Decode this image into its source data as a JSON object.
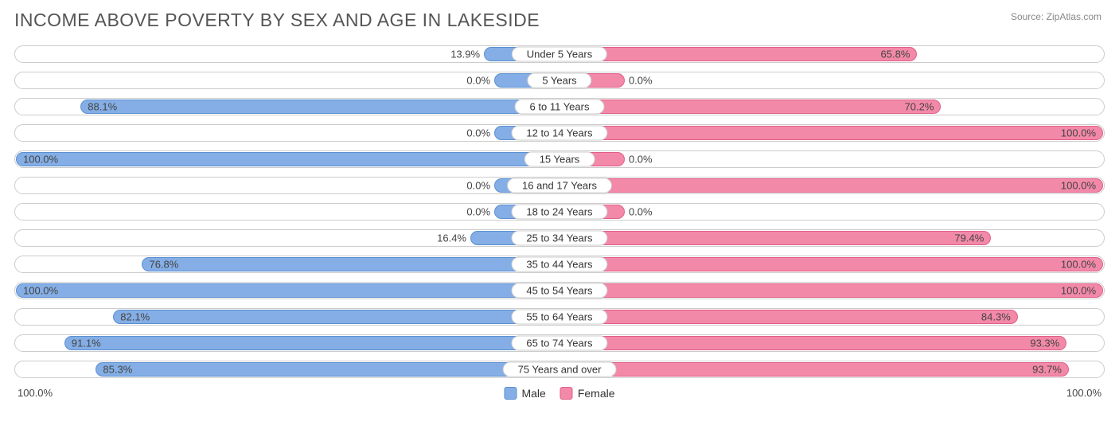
{
  "title": "INCOME ABOVE POVERTY BY SEX AND AGE IN LAKESIDE",
  "source": "Source: ZipAtlas.com",
  "chart": {
    "type": "diverging-bar",
    "male_color": "#84aee5",
    "male_border": "#5b8fd2",
    "female_color": "#f389a8",
    "female_border": "#e05f88",
    "track_border": "#cccccc",
    "background": "#ffffff",
    "min_bar_pct": 12,
    "inside_label_threshold": 25,
    "categories": [
      {
        "label": "Under 5 Years",
        "male": 13.9,
        "female": 65.8
      },
      {
        "label": "5 Years",
        "male": 0.0,
        "female": 0.0
      },
      {
        "label": "6 to 11 Years",
        "male": 88.1,
        "female": 70.2
      },
      {
        "label": "12 to 14 Years",
        "male": 0.0,
        "female": 100.0
      },
      {
        "label": "15 Years",
        "male": 100.0,
        "female": 0.0
      },
      {
        "label": "16 and 17 Years",
        "male": 0.0,
        "female": 100.0
      },
      {
        "label": "18 to 24 Years",
        "male": 0.0,
        "female": 0.0
      },
      {
        "label": "25 to 34 Years",
        "male": 16.4,
        "female": 79.4
      },
      {
        "label": "35 to 44 Years",
        "male": 76.8,
        "female": 100.0
      },
      {
        "label": "45 to 54 Years",
        "male": 100.0,
        "female": 100.0
      },
      {
        "label": "55 to 64 Years",
        "male": 82.1,
        "female": 84.3
      },
      {
        "label": "65 to 74 Years",
        "male": 91.1,
        "female": 93.3
      },
      {
        "label": "75 Years and over",
        "male": 85.3,
        "female": 93.7
      }
    ]
  },
  "axis": {
    "left": "100.0%",
    "right": "100.0%"
  },
  "legend": {
    "male": "Male",
    "female": "Female"
  }
}
